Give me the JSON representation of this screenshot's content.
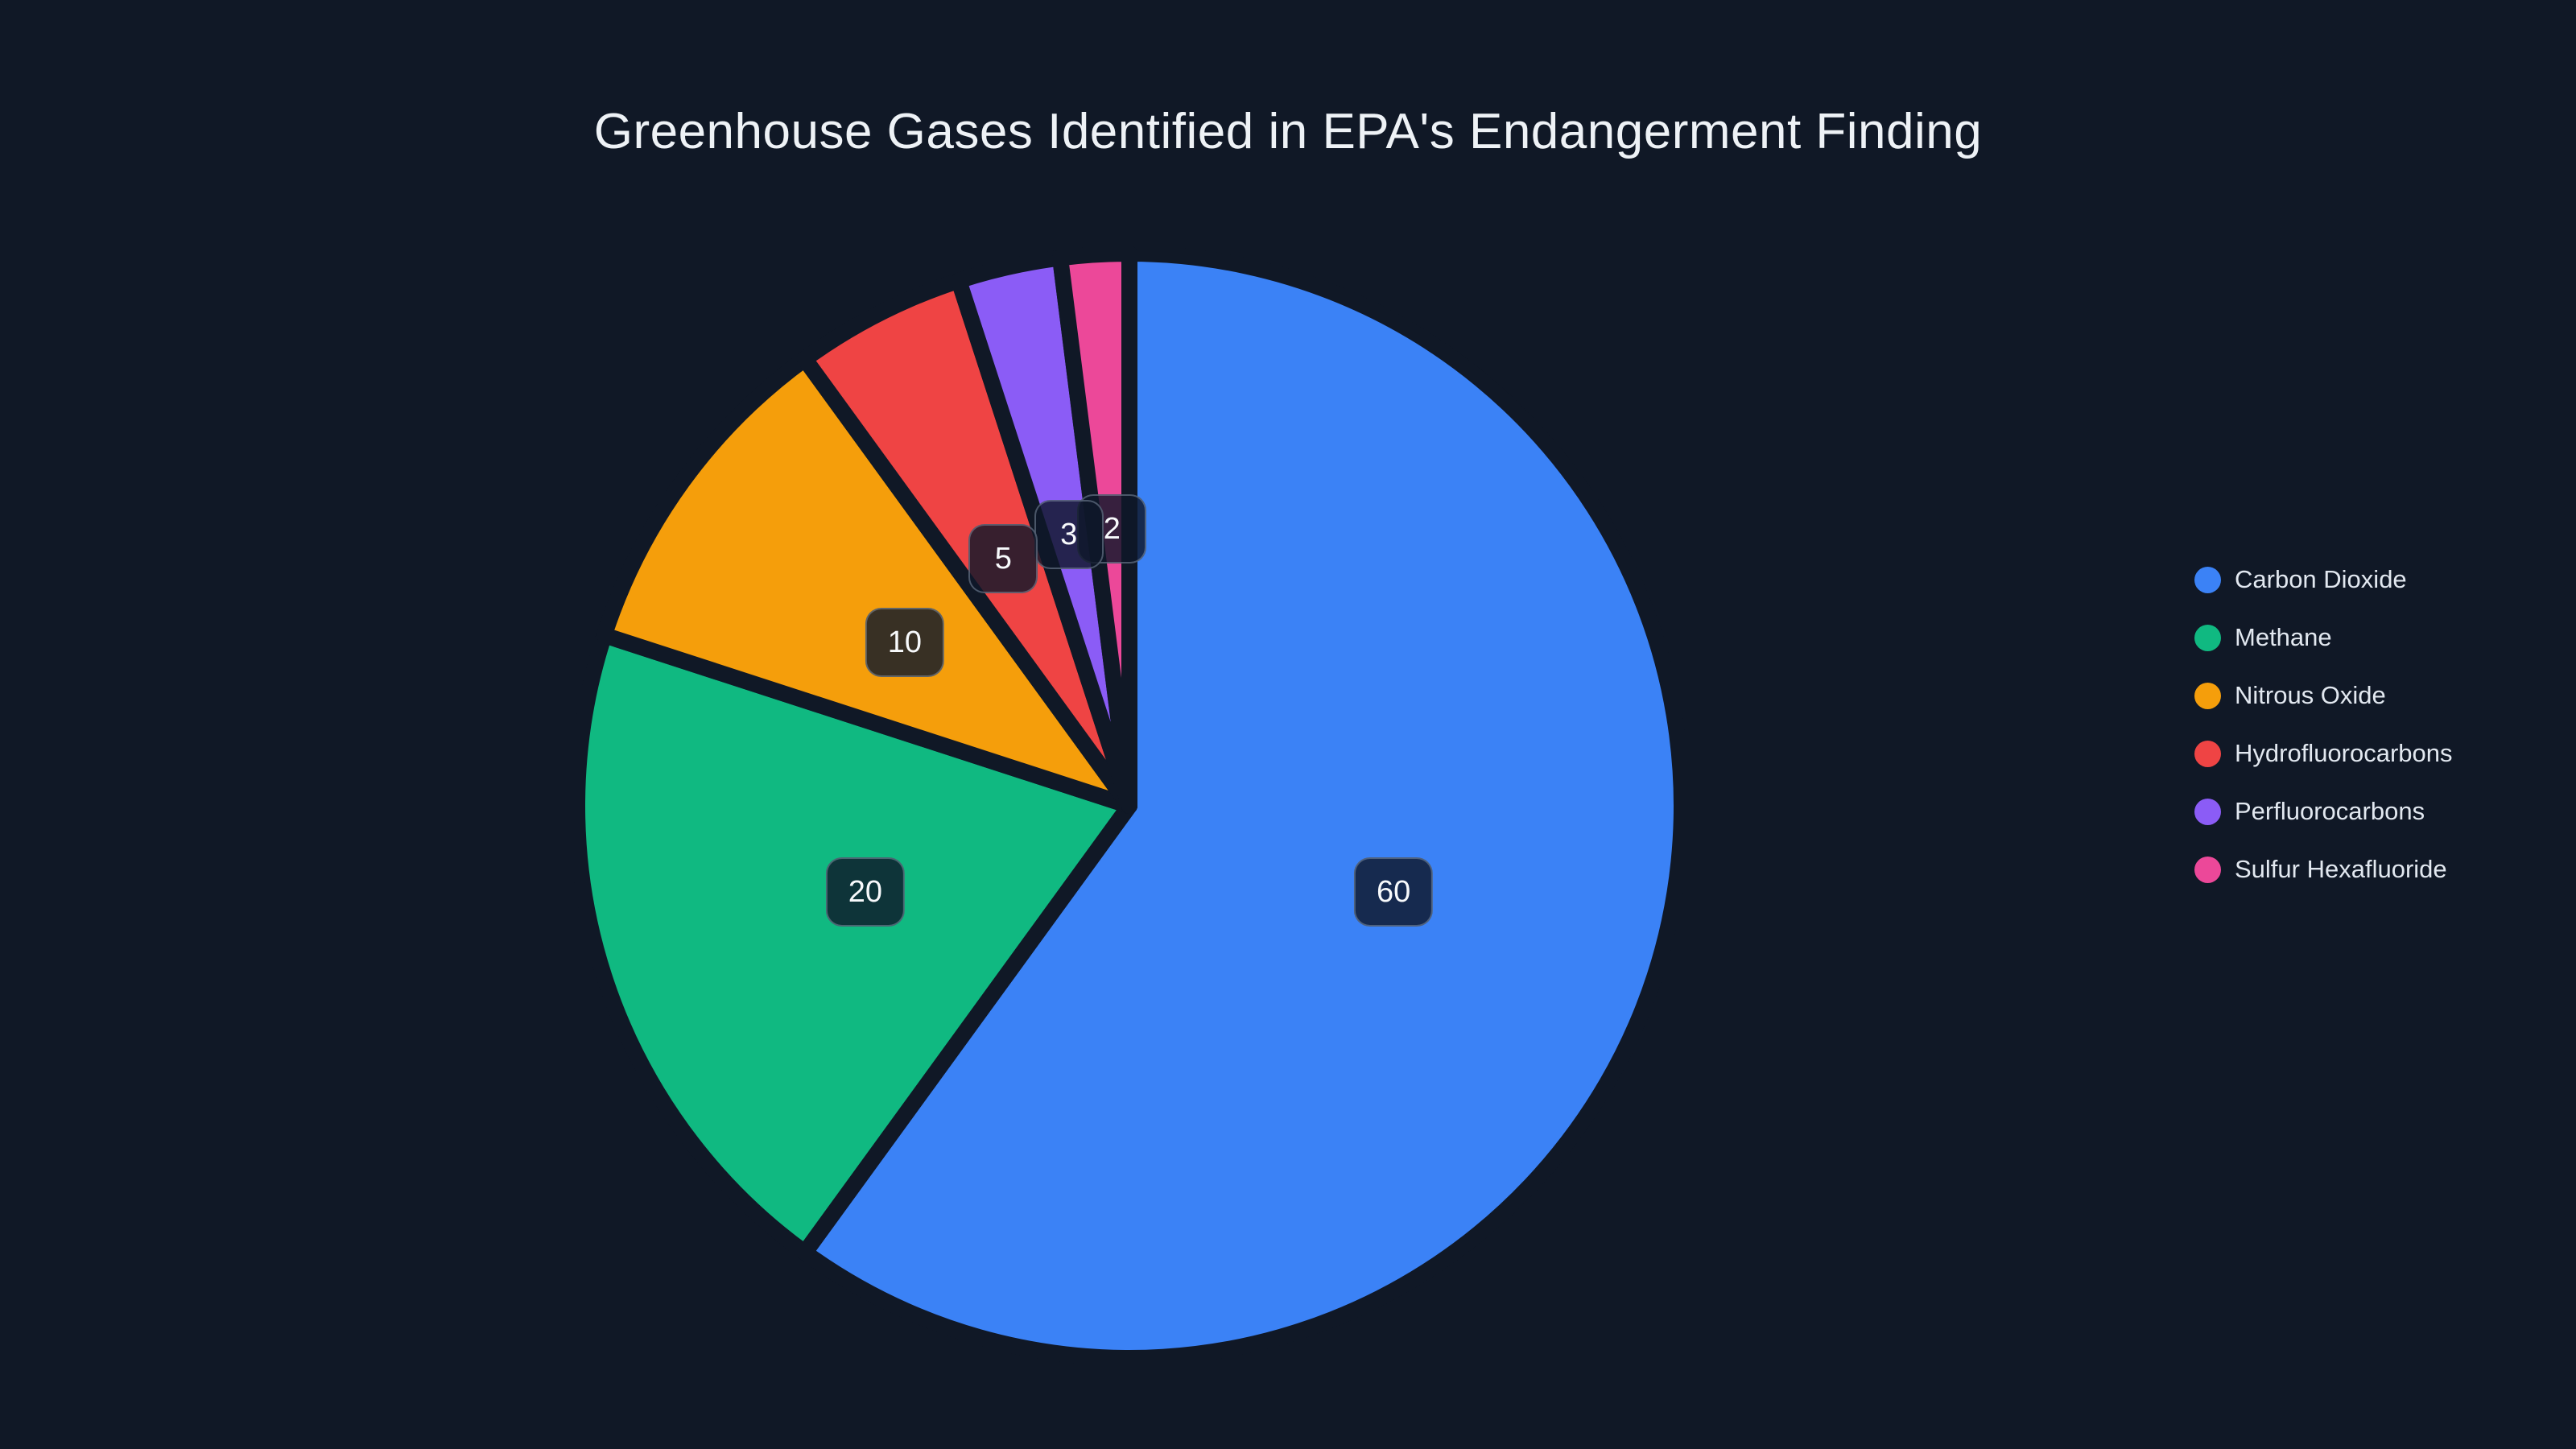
{
  "title": {
    "text": "Greenhouse Gases Identified in EPA's Endangerment Finding"
  },
  "chart_data": {
    "type": "pie",
    "title": "Greenhouse Gases Identified in EPA's Endangerment Finding",
    "labels": [
      "Carbon Dioxide",
      "Methane",
      "Nitrous Oxide",
      "Hydrofluorocarbons",
      "Perfluorocarbons",
      "Sulfur Hexafluoride"
    ],
    "values": [
      60,
      20,
      10,
      5,
      3,
      2
    ],
    "value_labels": [
      "60",
      "20",
      "10",
      "5",
      "3",
      "2"
    ],
    "colors": [
      "#3b82f6",
      "#10b981",
      "#f59e0b",
      "#ef4444",
      "#8b5cf6",
      "#ec4899"
    ],
    "start_angle_deg": 0,
    "direction": "clockwise",
    "legend_position": "right",
    "background_color": "#101826",
    "slice_border_color": "#101826",
    "badge_bg": "rgba(15,23,42,0.82)",
    "badge_text_color": "#f8fafc"
  }
}
